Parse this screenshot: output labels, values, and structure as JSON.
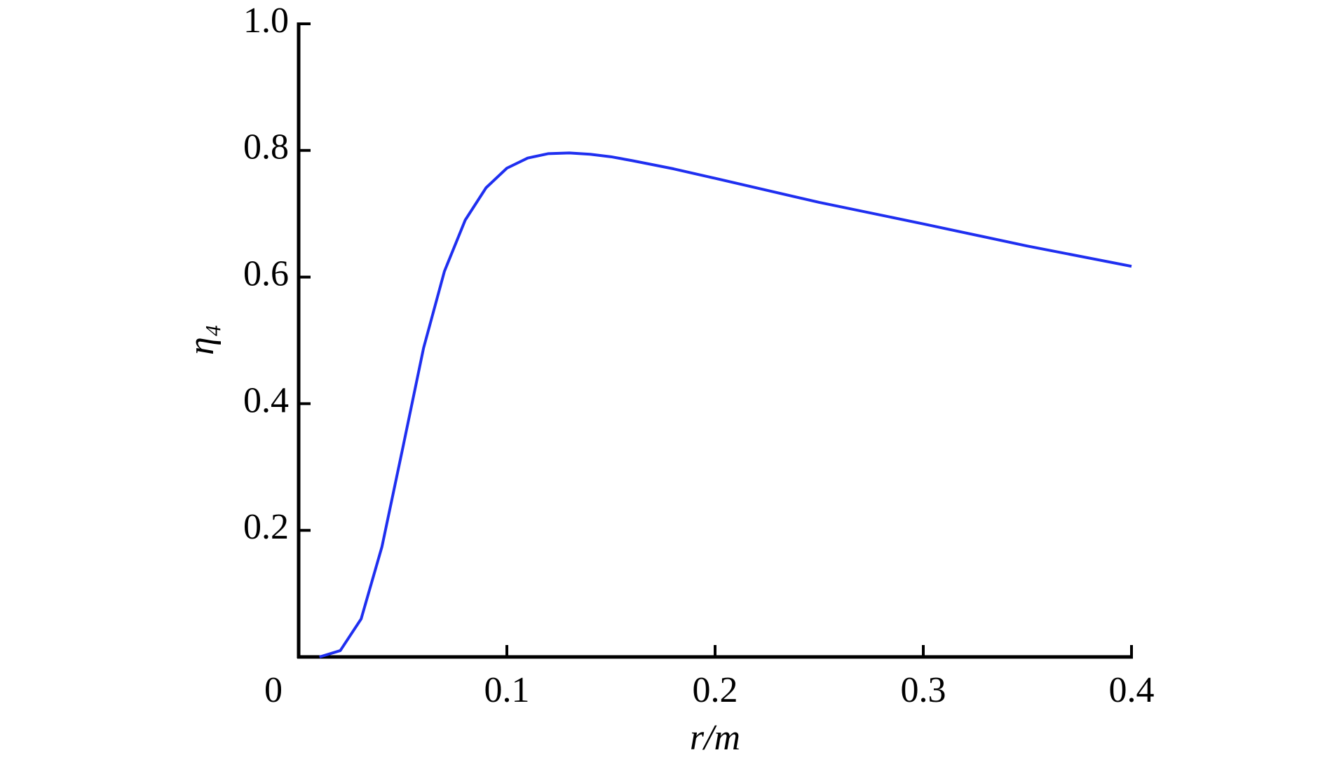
{
  "chart_data": {
    "type": "line",
    "xlabel": "r/m",
    "ylabel": "η₄",
    "x": [
      0.01,
      0.02,
      0.03,
      0.04,
      0.05,
      0.06,
      0.07,
      0.08,
      0.09,
      0.1,
      0.11,
      0.12,
      0.13,
      0.14,
      0.15,
      0.16,
      0.18,
      0.2,
      0.25,
      0.3,
      0.35,
      0.4
    ],
    "series": [
      {
        "color": "#1f2ff0",
        "values": [
          0,
          0.01,
          0.06,
          0.174,
          0.33,
          0.488,
          0.609,
          0.69,
          0.741,
          0.772,
          0.788,
          0.795,
          0.796,
          0.794,
          0.79,
          0.784,
          0.771,
          0.756,
          0.718,
          0.684,
          0.649,
          0.617
        ]
      }
    ],
    "xlim": [
      0,
      0.4
    ],
    "xticks": [
      0,
      0.1,
      0.2,
      0.3,
      0.4
    ],
    "ylim": [
      0,
      1.0
    ],
    "yticks": [
      0.2,
      0.4,
      0.6,
      0.8,
      {
        "value": 1.0,
        "label": "1.0"
      }
    ],
    "grid": false
  }
}
